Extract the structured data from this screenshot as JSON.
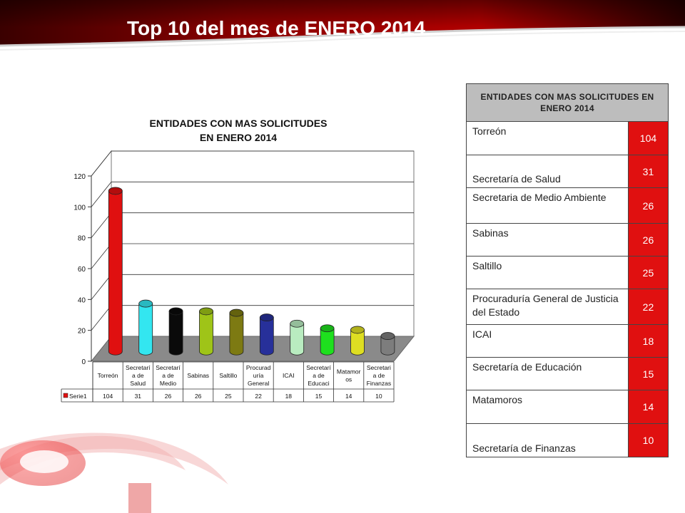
{
  "page": {
    "title": "Top 10 del mes de ENERO 2014"
  },
  "colors": {
    "banner_dark": "#2a0000",
    "banner_red": "#c00000",
    "value_cell": "#e01010",
    "header_cell": "#bdbdbd"
  },
  "chart_data": {
    "type": "bar",
    "title": "ENTIDADES CON MAS SOLICITUDES EN ENERO 2014",
    "title_lines": [
      "ENTIDADES CON MAS SOLICITUDES",
      "EN ENERO 2014"
    ],
    "xlabel": "",
    "ylabel": "",
    "ylim": [
      0,
      120
    ],
    "yticks": [
      "0",
      "20",
      "40",
      "60",
      "80",
      "100",
      "120"
    ],
    "categories": [
      [
        "Torreón"
      ],
      [
        "Secretarí",
        "a de",
        "Salud"
      ],
      [
        "Secretarí",
        "a de",
        "Medio"
      ],
      [
        "Sabinas"
      ],
      [
        "Saltillo"
      ],
      [
        "Procurad",
        "uría",
        "General"
      ],
      [
        "ICAI"
      ],
      [
        "Secretarí",
        "a de",
        "Educaci"
      ],
      [
        "Matamor",
        "os"
      ],
      [
        "Secretari",
        "a de",
        "Finanzas"
      ]
    ],
    "series": [
      {
        "name": "Serie1",
        "values": [
          104,
          31,
          26,
          26,
          25,
          22,
          18,
          15,
          14,
          10
        ]
      }
    ],
    "colors": [
      "#e01010",
      "#33e6f0",
      "#0a0a0a",
      "#9fc418",
      "#7d7a12",
      "#27309a",
      "#b9ecc0",
      "#1ee01e",
      "#dede22",
      "#7d7d7d"
    ],
    "legend": "bottom-left (data table)",
    "grid": true,
    "floor_color": "#8a8a8a",
    "value_labels": [
      "104",
      "31",
      "26",
      "26",
      "25",
      "22",
      "18",
      "15",
      "14",
      "10"
    ]
  },
  "table": {
    "header": "ENTIDADES CON MAS SOLICITUDES EN ENERO 2014",
    "rows": [
      {
        "name": "Torreón",
        "value": "104"
      },
      {
        "name": "Secretaría de Salud",
        "value": "31"
      },
      {
        "name": "Secretaria de Medio Ambiente",
        "value": "26"
      },
      {
        "name": "Sabinas",
        "value": "26"
      },
      {
        "name": "Saltillo",
        "value": "25"
      },
      {
        "name": "Procuraduría General de Justicia del Estado",
        "value": "22"
      },
      {
        "name": "ICAI",
        "value": "18"
      },
      {
        "name": "Secretaría de Educación",
        "value": "15"
      },
      {
        "name": "Matamoros",
        "value": "14"
      },
      {
        "name": "Secretaría de Finanzas",
        "value": "10"
      }
    ]
  }
}
